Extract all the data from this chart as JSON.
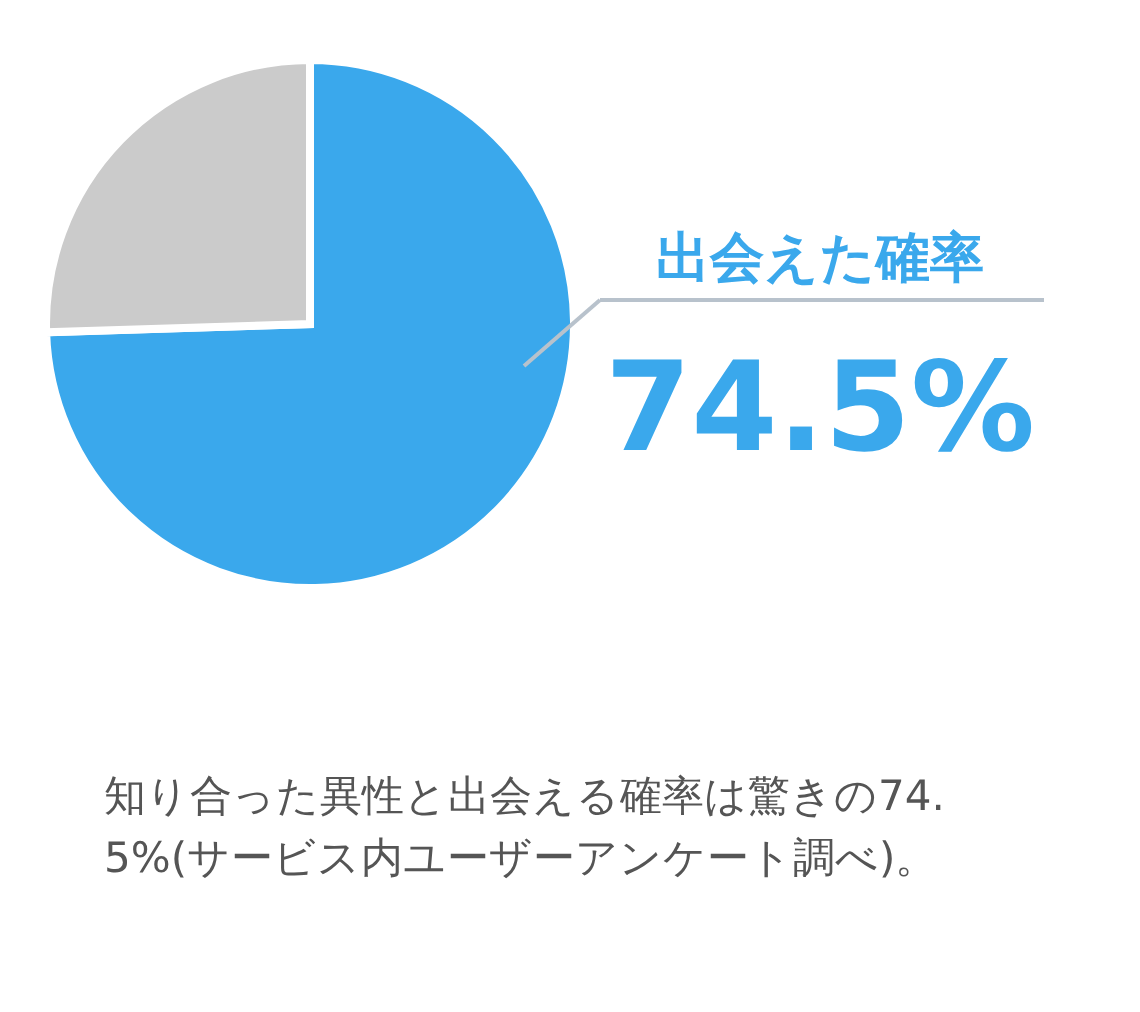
{
  "chart_data": {
    "type": "pie",
    "categories": [
      "出会えた確率",
      null
    ],
    "values": [
      74.5,
      25.5
    ],
    "colors": [
      "#3aa8ec",
      "#cbcbcb"
    ],
    "value_labels": [
      "74.5%",
      null
    ],
    "annotations": [
      "知り合った異性と出会える確率は驚きの74.5%(サービス内ユーザーアンケート調べ)。"
    ]
  }
}
